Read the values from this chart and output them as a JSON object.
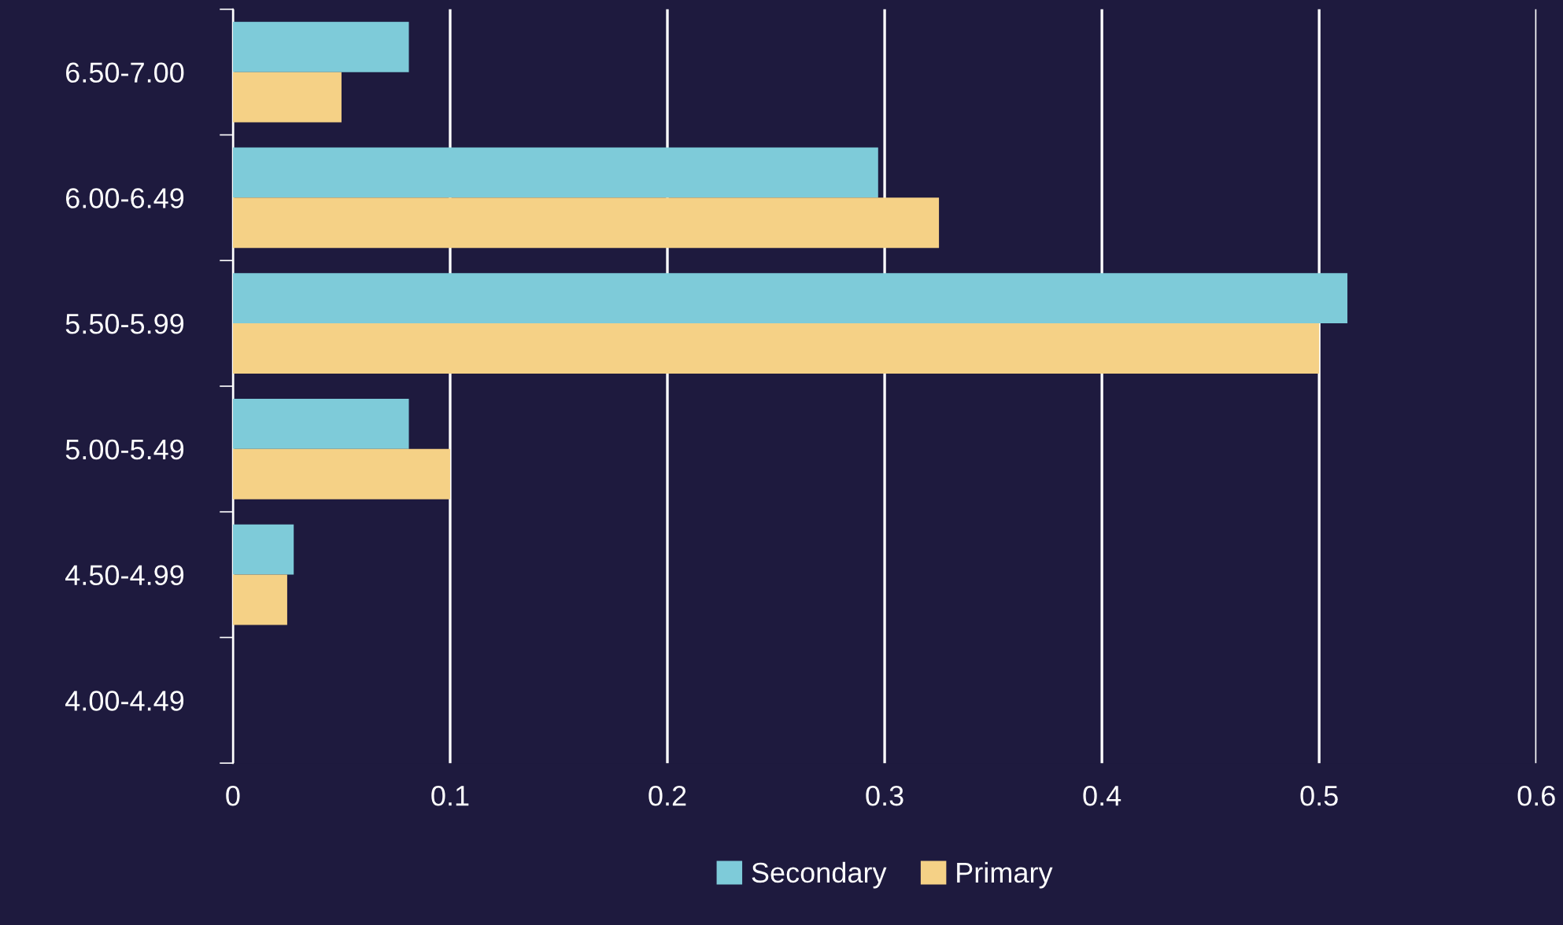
{
  "chart_data": {
    "type": "bar",
    "orientation": "horizontal",
    "categories": [
      "6.50-7.00",
      "6.00-6.49",
      "5.50-5.99",
      "5.00-5.49",
      "4.50-4.99",
      "4.00-4.49"
    ],
    "series": [
      {
        "name": "Secondary",
        "color": "#7ecbd9",
        "values": [
          0.081,
          0.297,
          0.513,
          0.081,
          0.028,
          0
        ]
      },
      {
        "name": "Primary",
        "color": "#f5d186",
        "values": [
          0.05,
          0.325,
          0.5,
          0.1,
          0.025,
          0
        ]
      }
    ],
    "xlim": [
      0,
      0.6
    ],
    "xticks": [
      0,
      0.1,
      0.2,
      0.3,
      0.4,
      0.5,
      0.6
    ],
    "grid": "x",
    "legend": "bottom"
  }
}
